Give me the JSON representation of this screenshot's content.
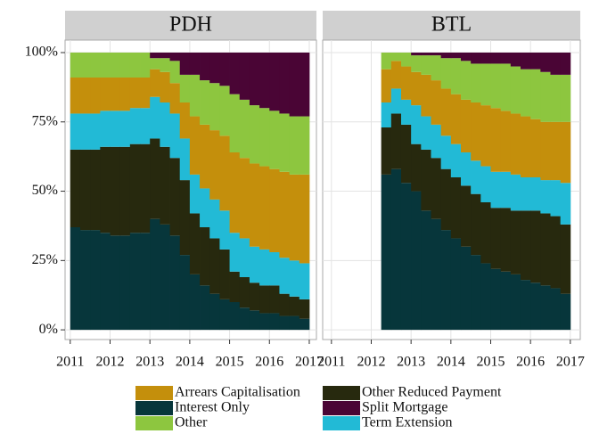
{
  "chart_data": [
    {
      "type": "area",
      "title": "PDH",
      "x": [
        2011,
        2011.25,
        2011.5,
        2011.75,
        2012,
        2012.25,
        2012.5,
        2012.75,
        2013,
        2013.25,
        2013.5,
        2013.75,
        2014,
        2014.25,
        2014.5,
        2014.75,
        2015,
        2015.25,
        2015.5,
        2015.75,
        2016,
        2016.25,
        2016.5,
        2016.75
      ],
      "series": [
        {
          "name": "Interest Only",
          "color": "#07363b",
          "values": [
            37,
            36,
            36,
            35,
            34,
            34,
            35,
            35,
            40,
            38,
            34,
            27,
            20,
            16,
            13,
            11,
            10,
            8,
            7,
            6,
            6,
            5,
            5,
            4
          ]
        },
        {
          "name": "Other Reduced Payment",
          "color": "#27290e",
          "values": [
            28,
            29,
            29,
            31,
            32,
            32,
            32,
            32,
            29,
            28,
            28,
            27,
            22,
            21,
            20,
            18,
            11,
            11,
            10,
            10,
            10,
            8,
            7,
            7
          ]
        },
        {
          "name": "Term Extension",
          "color": "#22bad6",
          "values": [
            13,
            13,
            13,
            13,
            13,
            13,
            13,
            13,
            15,
            16,
            16,
            15,
            14,
            14,
            14,
            14,
            14,
            14,
            13,
            13,
            12,
            13,
            13,
            13
          ]
        },
        {
          "name": "Arrears Capitalisation",
          "color": "#c48f0c",
          "values": [
            13,
            13,
            13,
            12,
            12,
            12,
            11,
            11,
            10,
            11,
            11,
            13,
            21,
            23,
            25,
            27,
            29,
            29,
            30,
            30,
            30,
            31,
            31,
            32
          ]
        },
        {
          "name": "Other",
          "color": "#8dc63f",
          "values": [
            9,
            9,
            9,
            9,
            9,
            9,
            9,
            9,
            4,
            5,
            8,
            10,
            15,
            16,
            17,
            18,
            21,
            21,
            21,
            21,
            21,
            21,
            21,
            21
          ]
        },
        {
          "name": "Split Mortgage",
          "color": "#4a0535",
          "values": [
            0,
            0,
            0,
            0,
            0,
            0,
            0,
            0,
            2,
            2,
            3,
            8,
            8,
            10,
            11,
            12,
            15,
            17,
            19,
            20,
            21,
            22,
            23,
            23
          ]
        }
      ],
      "xlim": [
        2010.87,
        2017.18
      ],
      "xticks": [
        2011,
        2012,
        2013,
        2014,
        2015,
        2016,
        2017
      ],
      "ylim": [
        -3.5,
        104.5
      ],
      "yticks": [
        {
          "value": 0,
          "label": "0%"
        },
        {
          "value": 25,
          "label": "25%"
        },
        {
          "value": 50,
          "label": "50%"
        },
        {
          "value": 75,
          "label": "75%"
        },
        {
          "value": 100,
          "label": "100%"
        }
      ],
      "grid": true
    },
    {
      "type": "area",
      "title": "BTL",
      "x": [
        2012.25,
        2012.5,
        2012.75,
        2013,
        2013.25,
        2013.5,
        2013.75,
        2014,
        2014.25,
        2014.5,
        2014.75,
        2015,
        2015.25,
        2015.5,
        2015.75,
        2016,
        2016.25,
        2016.5,
        2016.75
      ],
      "series": [
        {
          "name": "Interest Only",
          "color": "#07363b",
          "values": [
            56,
            58,
            53,
            50,
            43,
            40,
            36,
            33,
            30,
            27,
            24,
            22,
            21,
            20,
            18,
            17,
            16,
            15,
            13
          ]
        },
        {
          "name": "Other Reduced Payment",
          "color": "#27290e",
          "values": [
            17,
            20,
            21,
            17,
            22,
            22,
            22,
            22,
            22,
            22,
            22,
            22,
            23,
            23,
            25,
            26,
            26,
            26,
            25
          ]
        },
        {
          "name": "Term Extension",
          "color": "#22bad6",
          "values": [
            9,
            9,
            9,
            14,
            12,
            12,
            12,
            12,
            12,
            12,
            13,
            13,
            13,
            13,
            12,
            12,
            12,
            13,
            15
          ]
        },
        {
          "name": "Arrears Capitalisation",
          "color": "#c48f0c",
          "values": [
            12,
            10,
            12,
            12,
            15,
            16,
            17,
            18,
            19,
            21,
            22,
            23,
            22,
            22,
            22,
            21,
            21,
            21,
            22
          ]
        },
        {
          "name": "Other",
          "color": "#8dc63f",
          "values": [
            6,
            3,
            5,
            6,
            7,
            9,
            11,
            13,
            14,
            14,
            15,
            16,
            17,
            17,
            17,
            18,
            18,
            17,
            17
          ]
        },
        {
          "name": "Split Mortgage",
          "color": "#4a0535",
          "values": [
            0,
            0,
            0,
            1,
            1,
            1,
            2,
            2,
            3,
            4,
            4,
            4,
            4,
            5,
            6,
            6,
            7,
            8,
            8
          ]
        }
      ],
      "xlim": [
        2010.78,
        2017.25
      ],
      "xticks": [
        2011,
        2012,
        2013,
        2014,
        2015,
        2016,
        2017
      ],
      "ylim": [
        -3.5,
        104.5
      ],
      "grid": true
    }
  ]
}
